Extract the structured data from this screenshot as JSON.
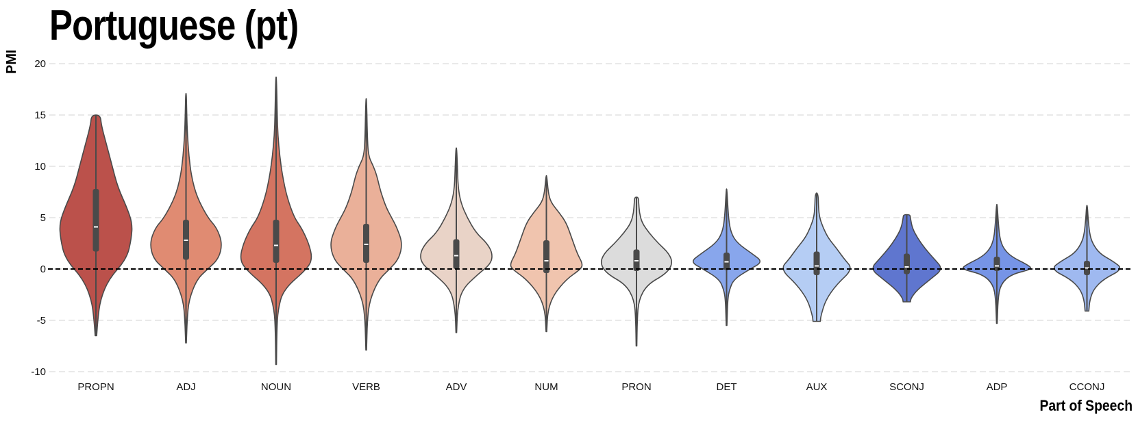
{
  "chart_data": {
    "type": "violin",
    "title": "Portuguese (pt)",
    "xlabel": "Part of Speech",
    "ylabel": "PMI",
    "ylim": [
      -10,
      20
    ],
    "yticks": [
      -10,
      -5,
      0,
      5,
      10,
      15,
      20
    ],
    "grid": "horizontal dashed",
    "reference_line": 0,
    "categories": [
      "PROPN",
      "ADJ",
      "NOUN",
      "VERB",
      "ADV",
      "NUM",
      "PRON",
      "DET",
      "AUX",
      "SCONJ",
      "ADP",
      "CCONJ"
    ],
    "colors": [
      "#bb514b",
      "#e08b72",
      "#d47461",
      "#eab099",
      "#e9d3c7",
      "#f0c4ae",
      "#dcdcdc",
      "#88a6ec",
      "#b5cdf4",
      "#5f76cf",
      "#7694e6",
      "#9fb9f0"
    ],
    "series": [
      {
        "name": "PROPN",
        "min": -6.5,
        "q1": 1.7,
        "median": 4.1,
        "q3": 7.8,
        "max": 15.0,
        "profile": [
          [
            -6.5,
            0.02
          ],
          [
            -5,
            0.05
          ],
          [
            -3,
            0.12
          ],
          [
            -1,
            0.35
          ],
          [
            1,
            0.85
          ],
          [
            3,
            0.98
          ],
          [
            4.5,
            1.0
          ],
          [
            6,
            0.85
          ],
          [
            8,
            0.6
          ],
          [
            10,
            0.45
          ],
          [
            12,
            0.3
          ],
          [
            14,
            0.15
          ],
          [
            15,
            0.12
          ]
        ]
      },
      {
        "name": "ADJ",
        "min": -7.2,
        "q1": 0.9,
        "median": 2.8,
        "q3": 4.8,
        "max": 17.1,
        "profile": [
          [
            -7.2,
            0.01
          ],
          [
            -5,
            0.03
          ],
          [
            -3,
            0.08
          ],
          [
            -1,
            0.3
          ],
          [
            0,
            0.6
          ],
          [
            1,
            0.9
          ],
          [
            2.5,
            1.0
          ],
          [
            4,
            0.85
          ],
          [
            5,
            0.6
          ],
          [
            7,
            0.3
          ],
          [
            9,
            0.15
          ],
          [
            11,
            0.08
          ],
          [
            13,
            0.04
          ],
          [
            15,
            0.02
          ],
          [
            17.1,
            0.01
          ]
        ]
      },
      {
        "name": "NOUN",
        "min": -9.3,
        "q1": 0.6,
        "median": 2.3,
        "q3": 4.8,
        "max": 18.7,
        "profile": [
          [
            -9.3,
            0.01
          ],
          [
            -6,
            0.02
          ],
          [
            -4,
            0.05
          ],
          [
            -2,
            0.2
          ],
          [
            0,
            0.85
          ],
          [
            1,
            1.0
          ],
          [
            2.5,
            0.9
          ],
          [
            4,
            0.7
          ],
          [
            5,
            0.5
          ],
          [
            7,
            0.3
          ],
          [
            9,
            0.18
          ],
          [
            11,
            0.1
          ],
          [
            13,
            0.05
          ],
          [
            15,
            0.03
          ],
          [
            18.7,
            0.01
          ]
        ]
      },
      {
        "name": "VERB",
        "min": -7.9,
        "q1": 0.6,
        "median": 2.4,
        "q3": 4.4,
        "max": 16.6,
        "profile": [
          [
            -7.9,
            0.01
          ],
          [
            -5,
            0.03
          ],
          [
            -3,
            0.1
          ],
          [
            -1,
            0.35
          ],
          [
            0,
            0.65
          ],
          [
            1,
            0.9
          ],
          [
            2.5,
            1.0
          ],
          [
            4,
            0.85
          ],
          [
            5,
            0.7
          ],
          [
            6,
            0.55
          ],
          [
            7.5,
            0.4
          ],
          [
            9,
            0.3
          ],
          [
            10,
            0.2
          ],
          [
            11,
            0.06
          ],
          [
            13,
            0.03
          ],
          [
            16.6,
            0.01
          ]
        ]
      },
      {
        "name": "ADV",
        "min": -6.2,
        "q1": 0.0,
        "median": 1.3,
        "q3": 2.9,
        "max": 11.8,
        "profile": [
          [
            -6.2,
            0.01
          ],
          [
            -4,
            0.03
          ],
          [
            -2,
            0.15
          ],
          [
            -0.5,
            0.6
          ],
          [
            0.5,
            0.95
          ],
          [
            1.5,
            1.0
          ],
          [
            2.5,
            0.85
          ],
          [
            3.5,
            0.55
          ],
          [
            5,
            0.3
          ],
          [
            6.5,
            0.12
          ],
          [
            8,
            0.05
          ],
          [
            10,
            0.03
          ],
          [
            11.8,
            0.01
          ]
        ]
      },
      {
        "name": "NUM",
        "min": -6.1,
        "q1": -0.4,
        "median": 0.8,
        "q3": 2.8,
        "max": 9.1,
        "profile": [
          [
            -6.1,
            0.01
          ],
          [
            -4,
            0.04
          ],
          [
            -2.5,
            0.2
          ],
          [
            -1,
            0.55
          ],
          [
            0,
            0.95
          ],
          [
            0.5,
            1.0
          ],
          [
            1.5,
            0.85
          ],
          [
            3,
            0.7
          ],
          [
            4.5,
            0.55
          ],
          [
            5.5,
            0.35
          ],
          [
            6.5,
            0.12
          ],
          [
            7.5,
            0.05
          ],
          [
            9.1,
            0.01
          ]
        ]
      },
      {
        "name": "PRON",
        "min": -7.5,
        "q1": -0.2,
        "median": 0.8,
        "q3": 1.9,
        "max": 7.0,
        "profile": [
          [
            -7.5,
            0.01
          ],
          [
            -5,
            0.02
          ],
          [
            -3,
            0.06
          ],
          [
            -1.5,
            0.3
          ],
          [
            -0.5,
            0.8
          ],
          [
            0.5,
            1.0
          ],
          [
            1.5,
            0.9
          ],
          [
            2.5,
            0.6
          ],
          [
            3.5,
            0.35
          ],
          [
            4.5,
            0.15
          ],
          [
            5.5,
            0.08
          ],
          [
            6.5,
            0.06
          ],
          [
            7.0,
            0.05
          ]
        ]
      },
      {
        "name": "DET",
        "min": -5.5,
        "q1": -0.1,
        "median": 0.7,
        "q3": 1.6,
        "max": 7.8,
        "profile": [
          [
            -5.5,
            0.01
          ],
          [
            -3,
            0.03
          ],
          [
            -2,
            0.08
          ],
          [
            -1,
            0.2
          ],
          [
            0,
            0.65
          ],
          [
            0.7,
            1.0
          ],
          [
            1.5,
            0.7
          ],
          [
            2.5,
            0.3
          ],
          [
            3.5,
            0.12
          ],
          [
            5,
            0.05
          ],
          [
            7.8,
            0.01
          ]
        ]
      },
      {
        "name": "AUX",
        "min": -5.1,
        "q1": -0.6,
        "median": 0.3,
        "q3": 1.7,
        "max": 7.4,
        "profile": [
          [
            -5.1,
            0.1
          ],
          [
            -4.5,
            0.12
          ],
          [
            -3,
            0.25
          ],
          [
            -1.5,
            0.55
          ],
          [
            0,
            1.0
          ],
          [
            1,
            0.75
          ],
          [
            2,
            0.55
          ],
          [
            3,
            0.32
          ],
          [
            4,
            0.18
          ],
          [
            5,
            0.08
          ],
          [
            6,
            0.05
          ],
          [
            7.4,
            0.04
          ]
        ]
      },
      {
        "name": "SCONJ",
        "min": -3.2,
        "q1": -0.5,
        "median": 0.2,
        "q3": 1.5,
        "max": 5.3,
        "profile": [
          [
            -3.2,
            0.1
          ],
          [
            -2.8,
            0.12
          ],
          [
            -2,
            0.3
          ],
          [
            -1,
            0.65
          ],
          [
            0,
            1.0
          ],
          [
            1,
            0.75
          ],
          [
            2,
            0.5
          ],
          [
            3,
            0.3
          ],
          [
            4,
            0.15
          ],
          [
            5,
            0.1
          ],
          [
            5.3,
            0.09
          ]
        ]
      },
      {
        "name": "ADP",
        "min": -5.3,
        "q1": -0.2,
        "median": 0.3,
        "q3": 1.2,
        "max": 6.3,
        "profile": [
          [
            -5.3,
            0.01
          ],
          [
            -3,
            0.03
          ],
          [
            -1.5,
            0.1
          ],
          [
            -0.5,
            0.4
          ],
          [
            0,
            1.0
          ],
          [
            0.5,
            0.8
          ],
          [
            1.2,
            0.4
          ],
          [
            2,
            0.18
          ],
          [
            3,
            0.08
          ],
          [
            4.5,
            0.04
          ],
          [
            6.3,
            0.01
          ]
        ]
      },
      {
        "name": "CCONJ",
        "min": -4.1,
        "q1": -0.6,
        "median": 0.1,
        "q3": 0.8,
        "max": 6.2,
        "profile": [
          [
            -4.1,
            0.05
          ],
          [
            -3,
            0.08
          ],
          [
            -2,
            0.18
          ],
          [
            -1,
            0.45
          ],
          [
            0,
            1.0
          ],
          [
            0.8,
            0.7
          ],
          [
            1.5,
            0.35
          ],
          [
            2.5,
            0.15
          ],
          [
            3.5,
            0.07
          ],
          [
            5,
            0.03
          ],
          [
            6.2,
            0.01
          ]
        ]
      }
    ]
  }
}
